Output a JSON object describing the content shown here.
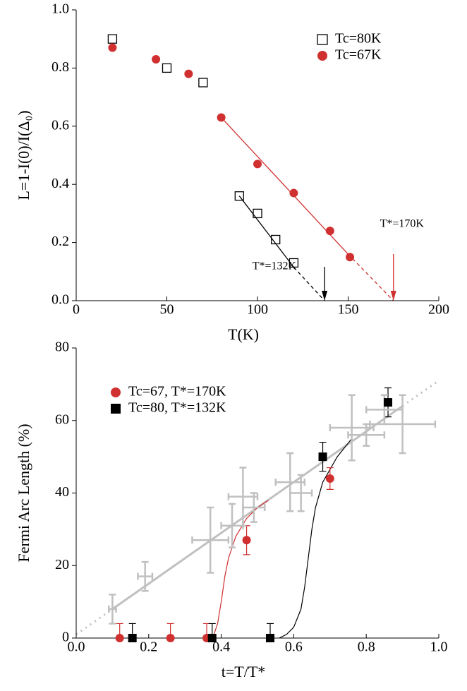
{
  "chart_data": [
    {
      "type": "scatter",
      "xlabel": "T(K)",
      "ylabel": "L=1-I(0)/I(Δ₀)",
      "xlim": [
        0,
        200
      ],
      "xticks": [
        0,
        50,
        100,
        150,
        200
      ],
      "ylim": [
        0,
        1
      ],
      "yticks": [
        {
          "value": 0,
          "label": "0.0"
        },
        0.2,
        0.4,
        0.6,
        0.8,
        {
          "value": 1,
          "label": "1.0"
        }
      ],
      "legend": "upper right",
      "series": [
        {
          "name": "Tc=80K",
          "color": "#000000",
          "marker": "open-square",
          "x": [
            20,
            50,
            70,
            90,
            100,
            110,
            120
          ],
          "values": [
            0.9,
            0.8,
            0.75,
            0.36,
            0.3,
            0.21,
            0.13
          ]
        },
        {
          "name": "Tc=67K",
          "color": "#d03030",
          "marker": "circle",
          "x": [
            20,
            44,
            62,
            80,
            100,
            120,
            140,
            151
          ],
          "values": [
            0.87,
            0.83,
            0.78,
            0.63,
            0.47,
            0.37,
            0.24,
            0.15
          ]
        }
      ],
      "lines": [
        {
          "color": "#000000",
          "style": "solid",
          "x": [
            90,
            120
          ],
          "y": [
            0.36,
            0.115
          ]
        },
        {
          "color": "#000000",
          "style": "dashed",
          "x": [
            120,
            137
          ],
          "y": [
            0.115,
            0
          ]
        },
        {
          "color": "#d03030",
          "style": "solid",
          "x": [
            80,
            150
          ],
          "y": [
            0.63,
            0.16
          ]
        },
        {
          "color": "#d03030",
          "style": "dashed",
          "x": [
            150,
            175
          ],
          "y": [
            0.16,
            0
          ]
        }
      ],
      "annotations": [
        {
          "text": "T*=170K",
          "x": 175,
          "color": "#d03030"
        },
        {
          "text": "T*=132K",
          "x": 137,
          "color": "#000000"
        }
      ]
    },
    {
      "type": "scatter",
      "xlabel": "t=T/T*",
      "ylabel": "Fermi Arc Length (%)",
      "xlim": [
        0,
        1
      ],
      "xticks": [
        {
          "value": 0,
          "label": "0.0"
        },
        0.2,
        0.4,
        0.6,
        0.8,
        {
          "value": 1,
          "label": "1.0"
        }
      ],
      "ylim": [
        0,
        80
      ],
      "yticks": [
        0,
        20,
        40,
        60,
        80
      ],
      "legend": "upper left",
      "series": [
        {
          "name": "Tc=67, T*=170K",
          "color": "#d03030",
          "marker": "circle",
          "x": [
            0.12,
            0.26,
            0.36,
            0.47,
            0.7
          ],
          "values": [
            0,
            0,
            0,
            27,
            44
          ],
          "yerr": [
            4,
            4,
            4,
            4,
            3
          ]
        },
        {
          "name": "Tc=80, T*=132K",
          "color": "#000000",
          "marker": "square",
          "x": [
            0.155,
            0.375,
            0.535,
            0.68,
            0.86
          ],
          "values": [
            0,
            0,
            0,
            50,
            65
          ],
          "yerr": [
            4,
            4,
            4,
            4,
            4
          ]
        },
        {
          "color": "#c0c0c0",
          "marker": "cross",
          "x": [
            0.1,
            0.19,
            0.37,
            0.43,
            0.46,
            0.49,
            0.59,
            0.62,
            0.76,
            0.8,
            0.85,
            0.9
          ],
          "values": [
            8,
            17,
            27,
            31,
            39,
            36,
            43,
            40,
            58,
            56,
            63,
            59
          ],
          "xerr": [
            0.01,
            0.02,
            0.05,
            0.03,
            0.04,
            0.03,
            0.04,
            0.03,
            0.06,
            0.05,
            0.05,
            0.09
          ],
          "yerr": [
            4,
            4,
            9,
            6,
            8,
            4,
            8,
            5,
            9,
            3,
            4,
            8
          ]
        }
      ],
      "lines": [
        {
          "color": "#c0c0c0",
          "style": "solid",
          "x": [
            0.1,
            0.9
          ],
          "y": [
            8,
            64
          ]
        },
        {
          "color": "#c0c0c0",
          "style": "dotted",
          "x": [
            0,
            0.1
          ],
          "y": [
            1,
            8
          ]
        },
        {
          "color": "#c0c0c0",
          "style": "dotted",
          "x": [
            0.9,
            1
          ],
          "y": [
            64,
            71
          ]
        },
        {
          "color": "#d03030",
          "style": "thin",
          "x": [
            0.37,
            0.38,
            0.39,
            0.4,
            0.41,
            0.42,
            0.44,
            0.47,
            0.5,
            0.53
          ],
          "y": [
            0,
            1,
            4,
            10,
            17,
            22,
            28,
            33,
            36,
            38
          ]
        },
        {
          "color": "#000000",
          "style": "thin",
          "x": [
            0.56,
            0.58,
            0.6,
            0.62,
            0.63,
            0.64,
            0.65,
            0.66,
            0.68,
            0.72,
            0.76
          ],
          "y": [
            0,
            1,
            3,
            8,
            14,
            22,
            30,
            36,
            43,
            50,
            55
          ]
        }
      ]
    }
  ]
}
